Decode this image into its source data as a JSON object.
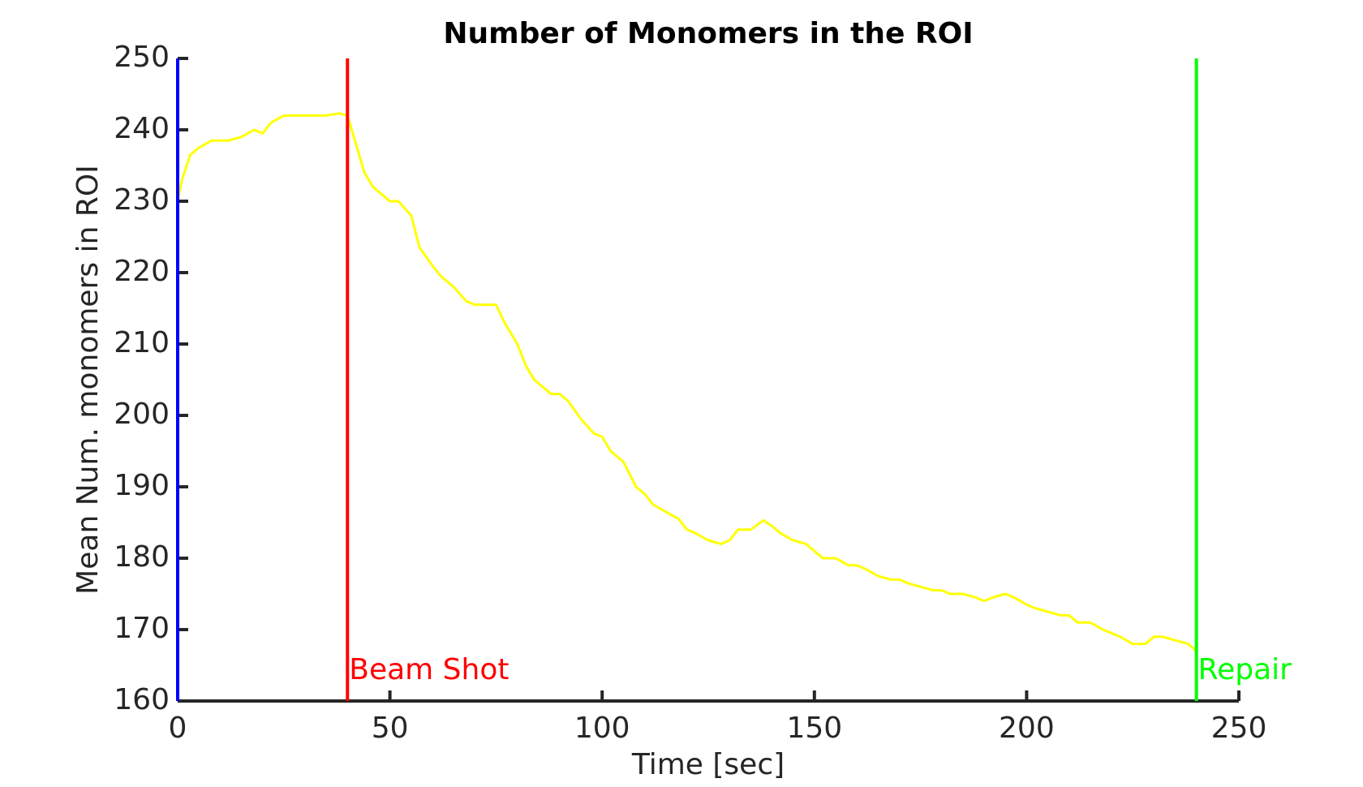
{
  "chart_data": {
    "type": "line",
    "title": "Number of Monomers in the ROI",
    "x_label": "Time [sec]",
    "y_label": "Mean Num. monomers in ROI",
    "xlim": [
      0,
      250
    ],
    "xticks": [
      0,
      50,
      100,
      150,
      200,
      250
    ],
    "ylim": [
      160,
      250
    ],
    "yticks": [
      160,
      170,
      180,
      190,
      200,
      210,
      220,
      230,
      240,
      250
    ],
    "grid": false,
    "markers": [
      {
        "x": 0,
        "color": "#0000ff"
      },
      {
        "x": 40,
        "label": "Beam Shot",
        "color": "#ff0000"
      },
      {
        "x": 240,
        "label": "Repair",
        "color": "#00ff00"
      }
    ],
    "series": [
      {
        "color": "#ffff00",
        "x": [
          0,
          1,
          3,
          5,
          8,
          10,
          12,
          15,
          18,
          20,
          22,
          25,
          30,
          35,
          38,
          40,
          42,
          44,
          46,
          48,
          50,
          52,
          55,
          57,
          60,
          62,
          65,
          68,
          70,
          75,
          77,
          80,
          82,
          84,
          86,
          88,
          90,
          92,
          95,
          98,
          100,
          102,
          105,
          108,
          110,
          112,
          115,
          118,
          120,
          122,
          125,
          128,
          130,
          132,
          135,
          138,
          140,
          142,
          145,
          148,
          150,
          152,
          155,
          158,
          160,
          162,
          165,
          168,
          170,
          172,
          175,
          178,
          180,
          182,
          185,
          188,
          190,
          192,
          195,
          197,
          200,
          202,
          205,
          208,
          210,
          212,
          215,
          218,
          220,
          222,
          225,
          228,
          230,
          232,
          235,
          238,
          240
        ],
        "values": [
          230,
          233,
          236.5,
          237.5,
          238.5,
          238.5,
          238.5,
          239,
          240,
          239.5,
          241,
          242,
          242,
          242,
          242.3,
          242,
          238,
          234,
          232,
          231,
          230,
          230,
          228,
          223.5,
          221,
          219.5,
          218,
          216,
          215.5,
          215.5,
          213,
          210,
          207,
          205,
          204,
          203,
          203,
          202,
          199.5,
          197.5,
          197,
          195,
          193.5,
          190,
          189,
          187.5,
          186.5,
          185.5,
          184,
          183.5,
          182.5,
          182,
          182.5,
          184,
          184,
          185.3,
          184.5,
          183.5,
          182.5,
          182,
          181,
          180,
          180,
          179,
          179,
          178.5,
          177.5,
          177,
          177,
          176.5,
          176,
          175.5,
          175.5,
          175,
          175,
          174.5,
          174,
          174.5,
          175,
          174.5,
          173.5,
          173,
          172.5,
          172,
          172,
          171,
          171,
          170,
          169.5,
          169,
          168,
          168,
          169,
          169,
          168.5,
          168,
          167
        ]
      }
    ]
  }
}
